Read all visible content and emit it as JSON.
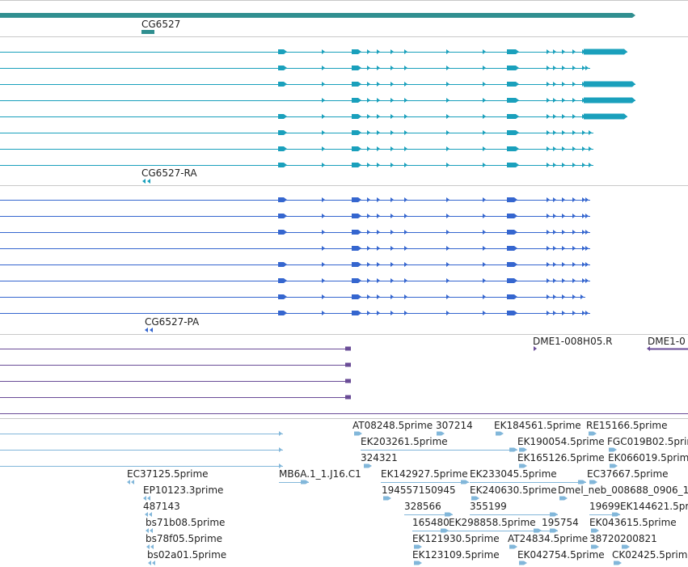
{
  "colors": {
    "gene": "#308f90",
    "mrna": "#1aa0bc",
    "cds": "#3566cf",
    "primer": "#6a4c97",
    "est": "#82b7da",
    "separator": "#c8c8c8"
  },
  "labels": {
    "gene": "CG6527",
    "mrna": "CG6527-RA",
    "cds": "CG6527-PA",
    "primer_left": "DME1-008H05.R",
    "primer_right": "DME1-0",
    "est": [
      "AT08248.5prime",
      "307214",
      "EK184561.5prime",
      "RE15166.5prime",
      "EK203261.5prime",
      "EK190054.5prime",
      "FGC019B02.5prime",
      "324321",
      "EK165126.5prime",
      "EK066019.5prime",
      "EC37125.5prime",
      "MB6A.1_1.J16.C1",
      "EK142927.5prime",
      "EK233045.5prime",
      "EC37667.5prime",
      "EP10123.3prime",
      "194557150945",
      "EK240630.5prime",
      "Dmel_neb_008688_0906_1",
      "487143",
      "328566",
      "355199",
      "19699",
      "EK144621.5prime",
      "bs71b08.5prime",
      "165480",
      "EK298858.5prime",
      "195754",
      "EK043615.5prime",
      "bs78f05.5prime",
      "EK121930.5prime",
      "AT24834.5prime",
      "38720",
      "200821",
      "bs02a01.5prime",
      "EK123109.5prime",
      "EK042754.5prime",
      "CK02425.5prime"
    ]
  }
}
